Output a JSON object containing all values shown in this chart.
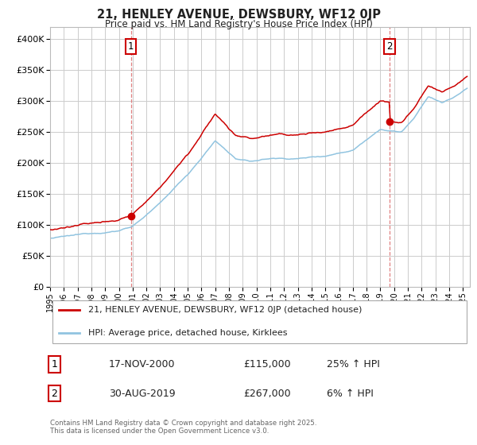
{
  "title1": "21, HENLEY AVENUE, DEWSBURY, WF12 0JP",
  "title2": "Price paid vs. HM Land Registry's House Price Index (HPI)",
  "legend_line1": "21, HENLEY AVENUE, DEWSBURY, WF12 0JP (detached house)",
  "legend_line2": "HPI: Average price, detached house, Kirklees",
  "sale1_year": 2000.88,
  "sale1_price": 115000,
  "sale2_year": 2019.66,
  "sale2_price": 267000,
  "hpi_color": "#91c4e0",
  "price_color": "#cc0000",
  "grid_color": "#cccccc",
  "background_color": "#ffffff",
  "ylim": [
    0,
    420000
  ],
  "xlim_start": 1995.0,
  "xlim_end": 2025.5,
  "ann1_date": "17-NOV-2000",
  "ann1_price": "£115,000",
  "ann1_change": "25% ↑ HPI",
  "ann2_date": "30-AUG-2019",
  "ann2_price": "£267,000",
  "ann2_change": "6% ↑ HPI",
  "copyright": "Contains HM Land Registry data © Crown copyright and database right 2025.\nThis data is licensed under the Open Government Licence v3.0."
}
